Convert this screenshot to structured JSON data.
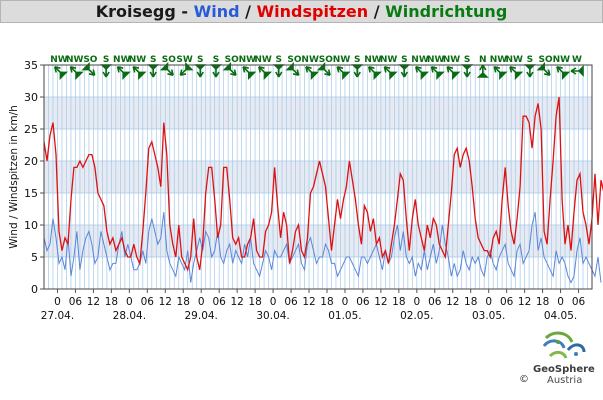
{
  "title": {
    "station": "Kroisegg",
    "sep1": " - ",
    "wind": "Wind",
    "sep2": " / ",
    "gusts": "Windspitzen",
    "sep3": " / ",
    "direction": "Windrichtung"
  },
  "colors": {
    "wind": "#5b86d9",
    "gusts": "#e01010",
    "direction": "#0a6b12",
    "band": "#e6eaf3",
    "grid": "#a6c8e6"
  },
  "logo": {
    "name": "GeoSphere",
    "sub": "Austria",
    "copyright": "©"
  },
  "chart_data": {
    "type": "line",
    "ylabel": "Wind / Windspitzen in km/h",
    "ylim": [
      0,
      35
    ],
    "yticks": [
      0,
      5,
      10,
      15,
      20,
      25,
      30,
      35
    ],
    "x_hour_ticks": [
      "0",
      "06",
      "12",
      "18",
      "0",
      "06",
      "12",
      "18",
      "0",
      "06",
      "12",
      "18",
      "0",
      "06",
      "12",
      "18",
      "0",
      "06",
      "12",
      "18",
      "0",
      "06",
      "12",
      "18",
      "0",
      "06",
      "12",
      "18",
      "0",
      "06"
    ],
    "x_hour_tick_index": [
      18,
      42,
      66,
      90,
      114,
      138,
      162,
      186,
      210,
      234,
      258,
      282,
      306,
      330,
      354,
      378,
      402,
      426,
      450,
      474,
      498,
      522,
      546,
      570,
      594,
      618,
      642,
      666,
      690,
      714
    ],
    "date_labels": [
      "27.04.",
      "28.04.",
      "29.04.",
      "30.04.",
      "01.05.",
      "02.05.",
      "03.05.",
      "04.05."
    ],
    "date_label_index": [
      18,
      114,
      210,
      306,
      402,
      498,
      594,
      690
    ],
    "x_max_index": 732,
    "wind_x_index_step": 4,
    "series": [
      {
        "name": "Wind",
        "values": [
          8,
          6,
          7,
          11,
          8,
          4,
          5,
          3,
          8,
          2,
          5,
          9,
          3,
          6,
          8,
          9,
          7,
          4,
          5,
          9,
          7,
          5,
          3,
          4,
          4,
          7,
          9,
          5,
          7,
          5,
          3,
          3,
          4,
          6,
          4,
          9,
          11,
          9,
          7,
          8,
          12,
          6,
          4,
          3,
          2,
          5,
          4,
          3,
          6,
          1,
          4,
          6,
          8,
          6,
          9,
          8,
          5,
          6,
          9,
          5,
          4,
          6,
          7,
          4,
          6,
          5,
          4,
          7,
          5,
          8,
          4,
          3,
          2,
          4,
          6,
          5,
          3,
          6,
          5,
          5,
          6,
          7,
          4,
          5,
          6,
          7,
          4,
          3,
          7,
          8,
          6,
          4,
          5,
          5,
          7,
          6,
          4,
          4,
          2,
          3,
          4,
          5,
          5,
          4,
          3,
          2,
          5,
          5,
          4,
          5,
          6,
          7,
          5,
          3,
          6,
          4,
          5,
          8,
          10,
          6,
          9,
          5,
          4,
          5,
          2,
          4,
          3,
          6,
          3,
          5,
          7,
          4,
          6,
          10,
          7,
          5,
          2,
          4,
          2,
          3,
          6,
          4,
          3,
          5,
          4,
          5,
          3,
          2,
          5,
          6,
          4,
          3,
          5,
          6,
          7,
          4,
          3,
          2,
          6,
          7,
          4,
          5,
          6,
          10,
          12,
          6,
          8,
          5,
          4,
          3,
          2,
          6,
          4,
          5,
          4,
          2,
          1,
          2,
          6,
          8,
          4,
          5,
          4,
          3,
          2,
          5,
          1
        ]
      },
      {
        "name": "Windspitzen",
        "values": [
          23,
          20,
          24,
          26,
          21,
          9,
          6,
          8,
          7,
          14,
          19,
          19,
          20,
          19,
          20,
          21,
          21,
          19,
          15,
          14,
          13,
          9,
          7,
          8,
          6,
          7,
          8,
          6,
          5,
          5,
          7,
          5,
          4,
          9,
          15,
          22,
          23,
          21,
          19,
          16,
          26,
          21,
          10,
          7,
          5,
          10,
          5,
          4,
          3,
          5,
          11,
          5,
          3,
          7,
          15,
          19,
          19,
          14,
          8,
          10,
          19,
          19,
          14,
          8,
          7,
          8,
          5,
          5,
          7,
          8,
          11,
          6,
          5,
          5,
          9,
          10,
          12,
          19,
          13,
          8,
          12,
          10,
          4,
          6,
          9,
          10,
          6,
          5,
          8,
          15,
          16,
          18,
          20,
          18,
          16,
          11,
          6,
          10,
          14,
          11,
          14,
          16,
          20,
          17,
          14,
          10,
          7,
          13,
          12,
          9,
          11,
          7,
          8,
          5,
          6,
          4,
          7,
          10,
          14,
          18,
          17,
          11,
          6,
          11,
          14,
          10,
          8,
          6,
          10,
          8,
          11,
          10,
          7,
          6,
          5,
          10,
          15,
          21,
          22,
          19,
          21,
          22,
          20,
          16,
          11,
          8,
          7,
          6,
          6,
          5,
          8,
          9,
          7,
          14,
          19,
          13,
          9,
          7,
          11,
          16,
          27,
          27,
          26,
          22,
          27,
          29,
          25,
          9,
          7,
          14,
          20,
          27,
          30,
          14,
          7,
          10,
          6,
          12,
          17,
          18,
          12,
          10,
          7,
          11,
          18,
          10,
          17,
          15,
          14,
          19,
          11
        ]
      }
    ],
    "direction_labels": [
      "NW",
      "NW",
      "SO",
      "S",
      "NW",
      "NW",
      "S",
      "SO",
      "SW",
      "S",
      "S",
      "SO",
      "NW",
      "NW",
      "S",
      "SO",
      "NW",
      "SO",
      "NW",
      "S",
      "NW",
      "NW",
      "S",
      "NW",
      "NW",
      "NW",
      "S",
      "N",
      "NW",
      "NW",
      "S",
      "SO",
      "NW",
      "W"
    ],
    "direction_angles": [
      315,
      315,
      135,
      180,
      315,
      315,
      180,
      135,
      225,
      180,
      180,
      135,
      315,
      315,
      180,
      135,
      315,
      135,
      315,
      180,
      315,
      315,
      180,
      315,
      315,
      315,
      180,
      0,
      315,
      315,
      180,
      135,
      315,
      270
    ]
  }
}
